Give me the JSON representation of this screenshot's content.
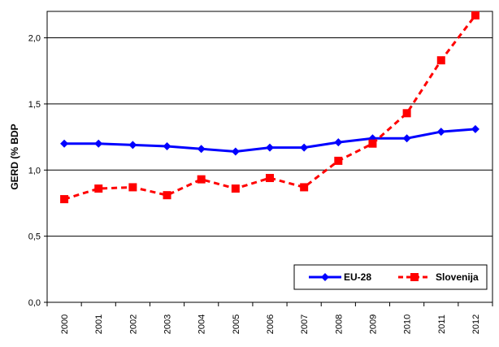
{
  "chart_data": {
    "type": "line",
    "x": [
      "2000",
      "2001",
      "2002",
      "2003",
      "2004",
      "2005",
      "2006",
      "2007",
      "2008",
      "2009",
      "2010",
      "2011",
      "2012"
    ],
    "ylabel": "GERD (% BDP",
    "ylim": [
      0,
      2.2
    ],
    "yticks": [
      0,
      0.5,
      1.0,
      1.5,
      2.0
    ],
    "ytick_labels": [
      "0,0",
      "0,5",
      "1,0",
      "1,5",
      "2,0"
    ],
    "grid": "horizontal",
    "legend_position": "bottom-right",
    "series": [
      {
        "name": "EU-28",
        "color": "#0000ff",
        "line_style": "solid",
        "marker": "diamond",
        "values": [
          1.2,
          1.2,
          1.19,
          1.18,
          1.16,
          1.14,
          1.17,
          1.17,
          1.21,
          1.24,
          1.24,
          1.29,
          1.31
        ]
      },
      {
        "name": "Slovenija",
        "color": "#ff0000",
        "line_style": "dashed",
        "marker": "square",
        "values": [
          0.78,
          0.86,
          0.87,
          0.81,
          0.93,
          0.86,
          0.94,
          0.87,
          1.07,
          1.2,
          1.43,
          1.83,
          2.17
        ]
      }
    ]
  }
}
